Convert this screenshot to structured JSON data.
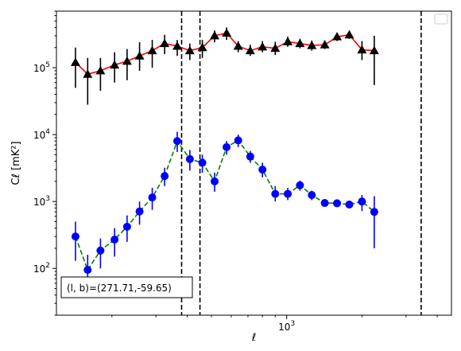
{
  "chart_data": {
    "type": "line",
    "xscale": "log",
    "yscale": "log",
    "xlim": [
      120,
      4560
    ],
    "ylim": [
      20,
      700000
    ],
    "xlabel": "ℓ",
    "ylabel": "Cℓ  [mK²]",
    "x_tick_labels": [
      {
        "value": 1000,
        "base": "10",
        "exp": "3"
      }
    ],
    "y_tick_labels": [
      {
        "value": 100,
        "base": "10",
        "exp": "2"
      },
      {
        "value": 1000,
        "base": "10",
        "exp": "3"
      },
      {
        "value": 10000,
        "base": "10",
        "exp": "4"
      },
      {
        "value": 100000,
        "base": "10",
        "exp": "5"
      }
    ],
    "legend": "top-right",
    "annotation": "(l, b)=(271.71,-59.65)",
    "vlines": [
      380,
      450,
      3450
    ],
    "series": [
      {
        "color": "#ff0000",
        "linestyle": "solid",
        "marker": "triangle",
        "marker_color": "#000000",
        "points": [
          {
            "x": 143,
            "y": 120000,
            "lo": 50000,
            "hi": 200000
          },
          {
            "x": 160,
            "y": 80000,
            "lo": 28000,
            "hi": 140000
          },
          {
            "x": 180,
            "y": 90000,
            "lo": 45000,
            "hi": 140000
          },
          {
            "x": 205,
            "y": 110000,
            "lo": 60000,
            "hi": 170000
          },
          {
            "x": 230,
            "y": 125000,
            "lo": 65000,
            "hi": 190000
          },
          {
            "x": 258,
            "y": 150000,
            "lo": 90000,
            "hi": 240000
          },
          {
            "x": 290,
            "y": 180000,
            "lo": 100000,
            "hi": 260000
          },
          {
            "x": 325,
            "y": 230000,
            "lo": 160000,
            "hi": 310000
          },
          {
            "x": 365,
            "y": 210000,
            "lo": 150000,
            "hi": 260000
          },
          {
            "x": 410,
            "y": 180000,
            "lo": 130000,
            "hi": 230000
          },
          {
            "x": 460,
            "y": 200000,
            "lo": 140000,
            "hi": 260000
          },
          {
            "x": 515,
            "y": 300000,
            "lo": 240000,
            "hi": 360000
          },
          {
            "x": 575,
            "y": 330000,
            "lo": 260000,
            "hi": 400000
          },
          {
            "x": 640,
            "y": 210000,
            "lo": 170000,
            "hi": 250000
          },
          {
            "x": 715,
            "y": 180000,
            "lo": 150000,
            "hi": 220000
          },
          {
            "x": 800,
            "y": 205000,
            "lo": 170000,
            "hi": 250000
          },
          {
            "x": 900,
            "y": 195000,
            "lo": 155000,
            "hi": 245000
          },
          {
            "x": 1010,
            "y": 245000,
            "lo": 205000,
            "hi": 290000
          },
          {
            "x": 1130,
            "y": 230000,
            "lo": 195000,
            "hi": 270000
          },
          {
            "x": 1260,
            "y": 215000,
            "lo": 180000,
            "hi": 255000
          },
          {
            "x": 1420,
            "y": 220000,
            "lo": 190000,
            "hi": 255000
          },
          {
            "x": 1590,
            "y": 290000,
            "lo": 250000,
            "hi": 330000
          },
          {
            "x": 1780,
            "y": 310000,
            "lo": 270000,
            "hi": 350000
          },
          {
            "x": 2000,
            "y": 185000,
            "lo": 130000,
            "hi": 250000
          },
          {
            "x": 2240,
            "y": 180000,
            "lo": 55000,
            "hi": 300000
          }
        ]
      },
      {
        "color": "#008000",
        "linestyle": "dashed",
        "marker": "circle",
        "marker_color": "#0000ff",
        "points": [
          {
            "x": 143,
            "y": 300,
            "lo": 130,
            "hi": 500
          },
          {
            "x": 160,
            "y": 95,
            "lo": 40,
            "hi": 160
          },
          {
            "x": 180,
            "y": 185,
            "lo": 100,
            "hi": 280
          },
          {
            "x": 205,
            "y": 270,
            "lo": 150,
            "hi": 400
          },
          {
            "x": 230,
            "y": 420,
            "lo": 250,
            "hi": 620
          },
          {
            "x": 258,
            "y": 710,
            "lo": 450,
            "hi": 1000
          },
          {
            "x": 290,
            "y": 1150,
            "lo": 750,
            "hi": 1600
          },
          {
            "x": 325,
            "y": 2400,
            "lo": 1700,
            "hi": 3200
          },
          {
            "x": 365,
            "y": 8000,
            "lo": 5500,
            "hi": 11000
          },
          {
            "x": 410,
            "y": 4300,
            "lo": 2900,
            "hi": 5900
          },
          {
            "x": 460,
            "y": 3800,
            "lo": 2700,
            "hi": 5000
          },
          {
            "x": 515,
            "y": 2000,
            "lo": 1400,
            "hi": 2700
          },
          {
            "x": 575,
            "y": 6500,
            "lo": 5000,
            "hi": 8000
          },
          {
            "x": 640,
            "y": 8200,
            "lo": 6500,
            "hi": 10000
          },
          {
            "x": 715,
            "y": 4700,
            "lo": 3800,
            "hi": 5700
          },
          {
            "x": 800,
            "y": 3000,
            "lo": 2300,
            "hi": 3800
          },
          {
            "x": 900,
            "y": 1300,
            "lo": 1000,
            "hi": 1700
          },
          {
            "x": 1010,
            "y": 1300,
            "lo": 1050,
            "hi": 1600
          },
          {
            "x": 1130,
            "y": 1750,
            "lo": 1450,
            "hi": 2050
          },
          {
            "x": 1260,
            "y": 1250,
            "lo": 1050,
            "hi": 1450
          },
          {
            "x": 1420,
            "y": 950,
            "lo": 850,
            "hi": 1060
          },
          {
            "x": 1590,
            "y": 940,
            "lo": 850,
            "hi": 1030
          },
          {
            "x": 1780,
            "y": 900,
            "lo": 810,
            "hi": 1000
          },
          {
            "x": 2000,
            "y": 1000,
            "lo": 720,
            "hi": 1250
          },
          {
            "x": 2240,
            "y": 700,
            "lo": 200,
            "hi": 1200
          }
        ]
      }
    ]
  }
}
